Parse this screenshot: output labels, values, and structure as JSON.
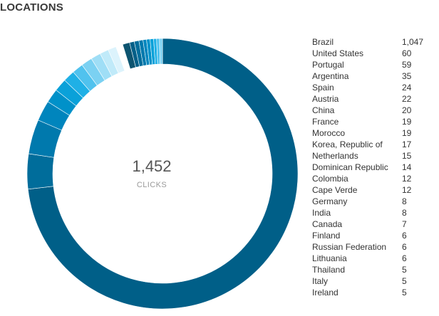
{
  "header": {
    "title": "LOCATIONS"
  },
  "summary": {
    "total": "1,452",
    "label": "CLICKS"
  },
  "chart_data": {
    "type": "pie",
    "donut": true,
    "legend_position": "right",
    "categories": [
      "Brazil",
      "United States",
      "Portugal",
      "Argentina",
      "Spain",
      "Austria",
      "China",
      "France",
      "Morocco",
      "Korea, Republic of",
      "Netherlands",
      "Dominican Republic",
      "Colombia",
      "Cape Verde",
      "Germany",
      "India",
      "Canada",
      "Finland",
      "Russian Federation",
      "Lithuania",
      "Thailand",
      "Italy",
      "Ireland"
    ],
    "values": [
      1047,
      60,
      59,
      35,
      24,
      22,
      20,
      19,
      19,
      17,
      15,
      14,
      12,
      12,
      8,
      8,
      7,
      6,
      6,
      6,
      5,
      5,
      5
    ],
    "value_labels": [
      "1,047",
      "60",
      "59",
      "35",
      "24",
      "22",
      "20",
      "19",
      "19",
      "17",
      "15",
      "14",
      "12",
      "12",
      "8",
      "8",
      "7",
      "6",
      "6",
      "6",
      "5",
      "5",
      "5"
    ],
    "total": 1452,
    "colors": [
      "#005f88",
      "#006d9b",
      "#0079ad",
      "#0085bd",
      "#0091c9",
      "#0aa1d9",
      "#1fb0e6",
      "#50c2ee",
      "#7bd1f2",
      "#9fdef6",
      "#c0eaf9",
      "#dcf3fc",
      "#ffffff",
      "#0d5470",
      "#005f88",
      "#006d9b",
      "#0079ad",
      "#0085bd",
      "#0091c9",
      "#0aa1d9",
      "#1fb0e6",
      "#50c2ee",
      "#7bd1f2"
    ]
  }
}
